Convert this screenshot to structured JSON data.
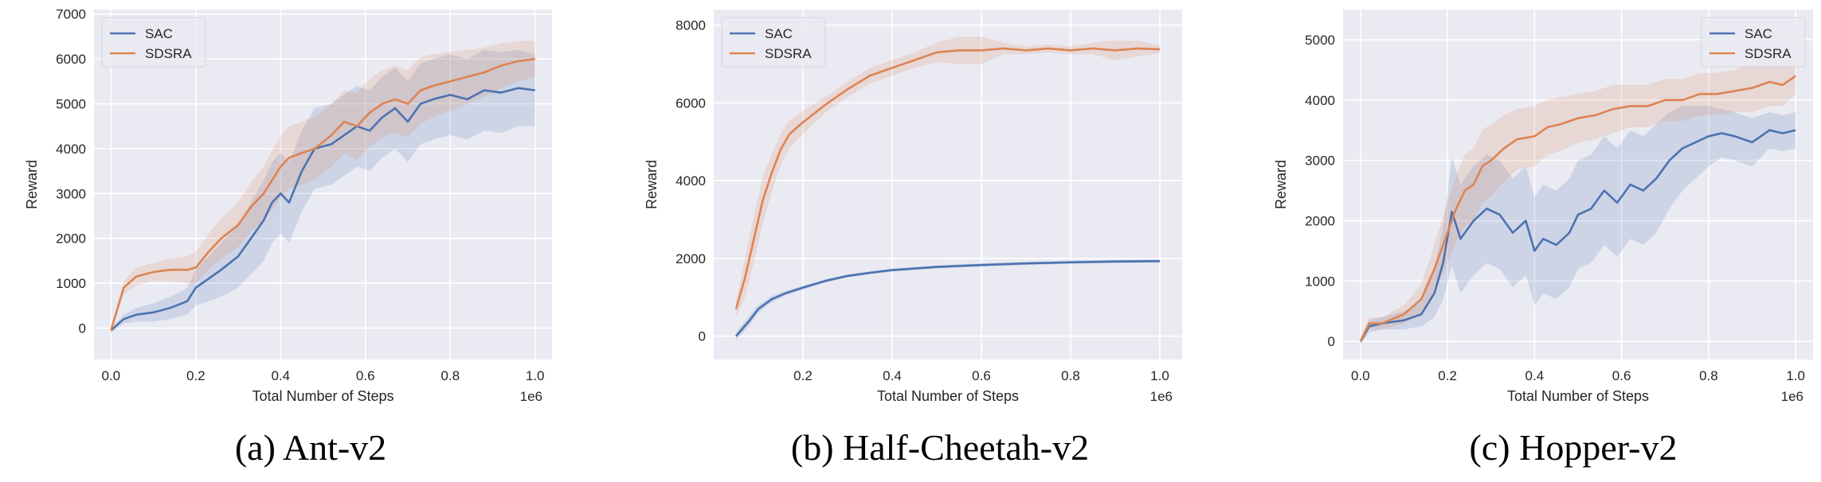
{
  "figure": {
    "panels": [
      {
        "caption": "(a) Ant-v2"
      },
      {
        "caption": "(b) Half-Cheetah-v2"
      },
      {
        "caption": "(c) Hopper-v2"
      }
    ]
  },
  "colors": {
    "background": "#eaeaf2",
    "grid": "#ffffff",
    "sac": "#4c72b0",
    "sdsra": "#dd8452"
  },
  "chart_data": [
    {
      "type": "line",
      "title": "",
      "xlabel": "Total Number of Steps",
      "ylabel": "Reward",
      "x_scale_label": "1e6",
      "xlim": [
        -0.04,
        1.04
      ],
      "ylim": [
        -700,
        7100
      ],
      "xticks": [
        0.0,
        0.2,
        0.4,
        0.6,
        0.8,
        1.0
      ],
      "xtick_labels": [
        "0.0",
        "0.2",
        "0.4",
        "0.6",
        "0.8",
        "1.0"
      ],
      "yticks": [
        0,
        1000,
        2000,
        3000,
        4000,
        5000,
        6000,
        7000
      ],
      "ytick_labels": [
        "0",
        "1000",
        "2000",
        "3000",
        "4000",
        "5000",
        "6000",
        "7000"
      ],
      "grid": true,
      "legend": "top-left",
      "series": [
        {
          "name": "SAC",
          "color": "#4c72b0",
          "x": [
            0.0,
            0.03,
            0.06,
            0.1,
            0.14,
            0.18,
            0.2,
            0.23,
            0.26,
            0.3,
            0.33,
            0.36,
            0.38,
            0.4,
            0.42,
            0.45,
            0.48,
            0.52,
            0.55,
            0.58,
            0.61,
            0.64,
            0.67,
            0.7,
            0.73,
            0.76,
            0.8,
            0.84,
            0.88,
            0.92,
            0.96,
            1.0
          ],
          "y": [
            -50,
            200,
            300,
            350,
            450,
            600,
            900,
            1100,
            1300,
            1600,
            2000,
            2400,
            2800,
            3000,
            2800,
            3500,
            4000,
            4100,
            4300,
            4500,
            4400,
            4700,
            4900,
            4600,
            5000,
            5100,
            5200,
            5100,
            5300,
            5250,
            5350,
            5300
          ],
          "band": [
            50,
            100,
            150,
            200,
            250,
            300,
            400,
            500,
            600,
            700,
            800,
            900,
            900,
            900,
            900,
            900,
            900,
            900,
            900,
            900,
            900,
            900,
            900,
            900,
            900,
            900,
            900,
            900,
            900,
            900,
            850,
            800
          ]
        },
        {
          "name": "SDSRA",
          "color": "#dd8452",
          "x": [
            0.0,
            0.03,
            0.06,
            0.1,
            0.14,
            0.18,
            0.2,
            0.23,
            0.26,
            0.3,
            0.33,
            0.36,
            0.38,
            0.4,
            0.42,
            0.45,
            0.48,
            0.52,
            0.55,
            0.58,
            0.61,
            0.64,
            0.67,
            0.7,
            0.73,
            0.76,
            0.8,
            0.84,
            0.88,
            0.92,
            0.96,
            1.0
          ],
          "y": [
            -50,
            900,
            1150,
            1250,
            1300,
            1300,
            1350,
            1700,
            2000,
            2300,
            2700,
            3000,
            3300,
            3600,
            3800,
            3900,
            4000,
            4300,
            4600,
            4500,
            4800,
            5000,
            5100,
            5000,
            5300,
            5400,
            5500,
            5600,
            5700,
            5850,
            5950,
            6000
          ],
          "band": [
            50,
            150,
            200,
            200,
            250,
            300,
            350,
            400,
            450,
            500,
            550,
            600,
            650,
            700,
            700,
            700,
            700,
            700,
            700,
            750,
            750,
            750,
            750,
            750,
            750,
            700,
            650,
            600,
            550,
            500,
            450,
            400
          ]
        }
      ]
    },
    {
      "type": "line",
      "title": "",
      "xlabel": "Total Number of Steps",
      "ylabel": "Reward",
      "x_scale_label": "1e6",
      "xlim": [
        0.0,
        1.05
      ],
      "ylim": [
        -600,
        8400
      ],
      "xticks": [
        0.2,
        0.4,
        0.6,
        0.8,
        1.0
      ],
      "xtick_labels": [
        "0.2",
        "0.4",
        "0.6",
        "0.8",
        "1.0"
      ],
      "yticks": [
        0,
        2000,
        4000,
        6000,
        8000
      ],
      "ytick_labels": [
        "0",
        "2000",
        "4000",
        "6000",
        "8000"
      ],
      "grid": true,
      "legend": "top-left",
      "series": [
        {
          "name": "SAC",
          "color": "#4c72b0",
          "x": [
            0.05,
            0.08,
            0.1,
            0.13,
            0.16,
            0.2,
            0.25,
            0.3,
            0.35,
            0.4,
            0.5,
            0.6,
            0.7,
            0.8,
            0.9,
            1.0
          ],
          "y": [
            0,
            400,
            700,
            950,
            1100,
            1250,
            1420,
            1550,
            1630,
            1700,
            1780,
            1830,
            1870,
            1900,
            1920,
            1930
          ],
          "band": [
            100,
            120,
            100,
            80,
            60,
            50,
            40,
            40,
            40,
            40,
            40,
            40,
            40,
            40,
            40,
            40
          ]
        },
        {
          "name": "SDSRA",
          "color": "#dd8452",
          "x": [
            0.05,
            0.07,
            0.09,
            0.11,
            0.13,
            0.15,
            0.17,
            0.2,
            0.25,
            0.3,
            0.35,
            0.4,
            0.45,
            0.5,
            0.55,
            0.6,
            0.65,
            0.7,
            0.75,
            0.8,
            0.85,
            0.9,
            0.95,
            1.0
          ],
          "y": [
            700,
            1500,
            2500,
            3500,
            4200,
            4800,
            5200,
            5500,
            5950,
            6350,
            6700,
            6900,
            7100,
            7300,
            7350,
            7350,
            7400,
            7350,
            7400,
            7350,
            7400,
            7350,
            7400,
            7380
          ],
          "band": [
            200,
            500,
            600,
            600,
            500,
            400,
            350,
            300,
            200,
            200,
            200,
            200,
            200,
            250,
            350,
            350,
            150,
            100,
            100,
            100,
            150,
            250,
            200,
            100
          ]
        }
      ]
    },
    {
      "type": "line",
      "title": "",
      "xlabel": "Total Number of Steps",
      "ylabel": "Reward",
      "x_scale_label": "1e6",
      "xlim": [
        -0.04,
        1.04
      ],
      "ylim": [
        -300,
        5500
      ],
      "xticks": [
        0.0,
        0.2,
        0.4,
        0.6,
        0.8,
        1.0
      ],
      "xtick_labels": [
        "0.0",
        "0.2",
        "0.4",
        "0.6",
        "0.8",
        "1.0"
      ],
      "yticks": [
        0,
        1000,
        2000,
        3000,
        4000,
        5000
      ],
      "ytick_labels": [
        "0",
        "1000",
        "2000",
        "3000",
        "4000",
        "5000"
      ],
      "grid": true,
      "legend": "top-right",
      "series": [
        {
          "name": "SAC",
          "color": "#4c72b0",
          "x": [
            0.0,
            0.02,
            0.05,
            0.1,
            0.14,
            0.17,
            0.19,
            0.21,
            0.23,
            0.26,
            0.29,
            0.32,
            0.35,
            0.38,
            0.4,
            0.42,
            0.45,
            0.48,
            0.5,
            0.53,
            0.56,
            0.59,
            0.62,
            0.65,
            0.68,
            0.71,
            0.74,
            0.77,
            0.8,
            0.83,
            0.86,
            0.9,
            0.94,
            0.97,
            1.0
          ],
          "y": [
            0,
            250,
            300,
            350,
            450,
            800,
            1300,
            2150,
            1700,
            2000,
            2200,
            2100,
            1800,
            2000,
            1500,
            1700,
            1600,
            1800,
            2100,
            2200,
            2500,
            2300,
            2600,
            2500,
            2700,
            3000,
            3200,
            3300,
            3400,
            3450,
            3400,
            3300,
            3500,
            3450,
            3500
          ],
          "band": [
            50,
            100,
            100,
            150,
            200,
            400,
            600,
            900,
            900,
            900,
            900,
            900,
            900,
            900,
            900,
            900,
            900,
            900,
            900,
            900,
            900,
            900,
            900,
            900,
            900,
            800,
            700,
            600,
            500,
            400,
            400,
            400,
            300,
            300,
            300
          ]
        },
        {
          "name": "SDSRA",
          "color": "#dd8452",
          "x": [
            0.0,
            0.02,
            0.05,
            0.1,
            0.14,
            0.17,
            0.2,
            0.22,
            0.24,
            0.26,
            0.28,
            0.3,
            0.33,
            0.36,
            0.4,
            0.43,
            0.46,
            0.5,
            0.54,
            0.58,
            0.62,
            0.66,
            0.7,
            0.74,
            0.78,
            0.82,
            0.86,
            0.9,
            0.94,
            0.97,
            1.0
          ],
          "y": [
            0,
            300,
            300,
            450,
            700,
            1200,
            1800,
            2200,
            2500,
            2600,
            2900,
            3000,
            3200,
            3350,
            3400,
            3550,
            3600,
            3700,
            3750,
            3850,
            3900,
            3900,
            4000,
            4000,
            4100,
            4100,
            4150,
            4200,
            4300,
            4250,
            4400
          ],
          "band": [
            50,
            100,
            100,
            150,
            250,
            400,
            500,
            550,
            600,
            600,
            600,
            600,
            550,
            500,
            500,
            450,
            450,
            400,
            400,
            400,
            350,
            350,
            350,
            350,
            350,
            350,
            350,
            400,
            400,
            350,
            300
          ]
        }
      ]
    }
  ]
}
